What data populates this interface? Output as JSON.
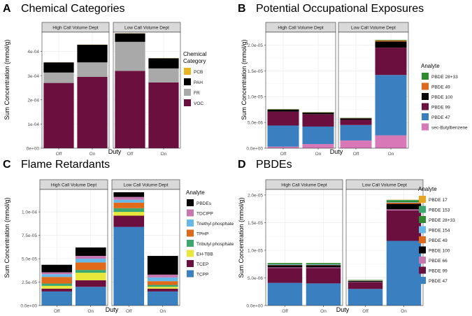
{
  "colors": {
    "PCB": "#e8b521",
    "PAH": "#000000",
    "FR": "#a9a9a9",
    "VOC": "#6b0f3f",
    "PBDE 28+33": "#2e8b2e",
    "PBDE 49": "#e06a1a",
    "PBDE 100": "#000000",
    "PBDE 99": "#6b0f3f",
    "PBDE 47": "#3a7fc0",
    "sec-Butylbenzene": "#d878b6",
    "PBDEs": "#000000",
    "TDCIPP": "#c776b0",
    "Triethyl phosphate": "#66b8e8",
    "TPHP": "#e06a1a",
    "Tributyl phosphate": "#3aa86f",
    "EH-TBB": "#e8e83a",
    "TCEP": "#6b0f3f",
    "TCPP": "#3a7fc0",
    "PBDE 17": "#e8a521",
    "PBDE 153": "#3aa86f",
    "PBDE 154": "#66b8e8",
    "PBDE 66": "#c776b0"
  },
  "chart_data": [
    {
      "id": "A",
      "panel_letter": "A",
      "title": "Chemical Categories",
      "type": "bar",
      "stacked": true,
      "xlabel": "Duty",
      "ylabel": "Sum Concentration (mmol/g)",
      "facets": [
        "High Call Volume Dept",
        "Low Call Volume Dept"
      ],
      "categories": [
        "Off",
        "On"
      ],
      "ylim": [
        0,
        0.00048
      ],
      "yticks": [
        0,
        0.0001,
        0.0002,
        0.0003,
        0.0004
      ],
      "ytick_labels": [
        "0e+00",
        "1e-04",
        "2e-04",
        "3e-04",
        "4e-04"
      ],
      "legend_title": "Chemical\nCategory",
      "legend": [
        "PCB",
        "PAH",
        "FR",
        "VOC"
      ],
      "stack_order": [
        "VOC",
        "FR",
        "PAH",
        "PCB"
      ],
      "series": [
        {
          "name": "VOC",
          "values": [
            [
              0.00027,
              0.000295
            ],
            [
              0.00032,
              0.000272
            ]
          ]
        },
        {
          "name": "FR",
          "values": [
            [
              4.3e-05,
              6e-05
            ],
            [
              0.00012,
              5.8e-05
            ]
          ]
        },
        {
          "name": "PAH",
          "values": [
            [
              4.2e-05,
              7.3e-05
            ],
            [
              3.5e-05,
              4.2e-05
            ]
          ]
        },
        {
          "name": "PCB",
          "values": [
            [
              5e-07,
              5e-07
            ],
            [
              5e-07,
              5e-07
            ]
          ]
        }
      ]
    },
    {
      "id": "B",
      "panel_letter": "B",
      "title": "Potential Occupational Exposures",
      "type": "bar",
      "stacked": true,
      "xlabel": "Duty",
      "ylabel": "Sum Concentration (mmol/g)",
      "facets": [
        "High Call Volume Dept",
        "Low Call Volume Dept"
      ],
      "categories": [
        "Off",
        "On"
      ],
      "ylim": [
        0,
        2.25e-05
      ],
      "yticks": [
        0,
        5e-06,
        1e-05,
        1.5e-05,
        2e-05
      ],
      "ytick_labels": [
        "0.0e+00",
        "5.0e-06",
        "1.0e-05",
        "1.5e-05",
        "2.0e-05"
      ],
      "legend_title": "Analyte",
      "legend": [
        "PBDE 28+33",
        "PBDE 49",
        "PBDE 100",
        "PBDE 99",
        "PBDE 47",
        "sec-Butylbenzene"
      ],
      "stack_order": [
        "sec-Butylbenzene",
        "PBDE 47",
        "PBDE 99",
        "PBDE 100",
        "PBDE 49",
        "PBDE 28+33"
      ],
      "series": [
        {
          "name": "sec-Butylbenzene",
          "values": [
            [
              3e-07,
              8e-07
            ],
            [
              1.5e-06,
              2.5e-06
            ]
          ]
        },
        {
          "name": "PBDE 47",
          "values": [
            [
              4.1e-06,
              3.4e-06
            ],
            [
              3e-06,
              1.17e-05
            ]
          ]
        },
        {
          "name": "PBDE 99",
          "values": [
            [
              2.7e-06,
              2.4e-06
            ],
            [
              1e-06,
              5.3e-06
            ]
          ]
        },
        {
          "name": "PBDE 100",
          "values": [
            [
              4e-07,
              3e-07
            ],
            [
              3e-07,
              1.2e-06
            ]
          ]
        },
        {
          "name": "PBDE 49",
          "values": [
            [
              5e-08,
              5e-08
            ],
            [
              5e-08,
              2e-07
            ]
          ]
        },
        {
          "name": "PBDE 28+33",
          "values": [
            [
              5e-08,
              5e-08
            ],
            [
              5e-08,
              1e-07
            ]
          ]
        }
      ]
    },
    {
      "id": "C",
      "panel_letter": "C",
      "title": "Flame Retardants",
      "type": "bar",
      "stacked": true,
      "xlabel": "Duty",
      "ylabel": "Sum Concentration (mmol/g)",
      "facets": [
        "High Call Volume Dept",
        "Low Call Volume Dept"
      ],
      "categories": [
        "Off",
        "On"
      ],
      "ylim": [
        0,
        0.000124
      ],
      "yticks": [
        0,
        2.5e-05,
        5e-05,
        7.5e-05,
        0.0001
      ],
      "ytick_labels": [
        "0.0e+00",
        "2.5e-05",
        "5.0e-05",
        "7.5e-05",
        "1.0e-04"
      ],
      "legend_title": "Analyte",
      "legend": [
        "PBDEs",
        "TDCIPP",
        "Triethyl phosphate",
        "TPHP",
        "Tributyl phosphate",
        "EH-TBB",
        "TCEP",
        "TCPP"
      ],
      "stack_order": [
        "TCPP",
        "TCEP",
        "EH-TBB",
        "Tributyl phosphate",
        "TPHP",
        "Triethyl phosphate",
        "TDCIPP",
        "PBDEs"
      ],
      "series": [
        {
          "name": "TCPP",
          "values": [
            [
              1.5e-05,
              2e-05
            ],
            [
              8.4e-05,
              1.5e-05
            ]
          ]
        },
        {
          "name": "TCEP",
          "values": [
            [
              3e-06,
              7e-06
            ],
            [
              1.2e-05,
              3e-06
            ]
          ]
        },
        {
          "name": "EH-TBB",
          "values": [
            [
              3e-06,
              8e-06
            ],
            [
              4e-06,
              2e-06
            ]
          ]
        },
        {
          "name": "Tributyl phosphate",
          "values": [
            [
              2.5e-06,
              3e-06
            ],
            [
              4e-06,
              2e-06
            ]
          ]
        },
        {
          "name": "TPHP",
          "values": [
            [
              7e-06,
              8e-06
            ],
            [
              6e-06,
              4e-06
            ]
          ]
        },
        {
          "name": "Triethyl phosphate",
          "values": [
            [
              3e-06,
              4e-06
            ],
            [
              3e-06,
              4e-06
            ]
          ]
        },
        {
          "name": "TDCIPP",
          "values": [
            [
              2e-06,
              3e-06
            ],
            [
              3e-06,
              3e-06
            ]
          ]
        },
        {
          "name": "PBDEs",
          "values": [
            [
              8e-06,
              9e-06
            ],
            [
              5e-06,
              2e-05
            ]
          ]
        }
      ]
    },
    {
      "id": "D",
      "panel_letter": "D",
      "title": "PBDEs",
      "type": "bar",
      "stacked": true,
      "xlabel": "Duty",
      "ylabel": "Sum Concentration (mmol/g)",
      "facets": [
        "High Call Volume Dept",
        "Low Call Volume Dept"
      ],
      "categories": [
        "Off",
        "On"
      ],
      "ylim": [
        0,
        2.1e-05
      ],
      "yticks": [
        0,
        5e-06,
        1e-05,
        1.5e-05,
        2e-05
      ],
      "ytick_labels": [
        "0.0e+00",
        "5.0e-06",
        "1.0e-05",
        "1.5e-05",
        "2.0e-05"
      ],
      "legend_title": "Analyte",
      "legend": [
        "PBDE 17",
        "PBDE 153",
        "PBDE 28+33",
        "PBDE 154",
        "PBDE 49",
        "PBDE 100",
        "PBDE 66",
        "PBDE 99",
        "PBDE 47"
      ],
      "stack_order": [
        "PBDE 47",
        "PBDE 99",
        "PBDE 66",
        "PBDE 100",
        "PBDE 49",
        "PBDE 154",
        "PBDE 28+33",
        "PBDE 153",
        "PBDE 17"
      ],
      "series": [
        {
          "name": "PBDE 47",
          "values": [
            [
              4.1e-06,
              4e-06
            ],
            [
              3e-06,
              1.17e-05
            ]
          ]
        },
        {
          "name": "PBDE 99",
          "values": [
            [
              2.7e-06,
              2.8e-06
            ],
            [
              1.2e-06,
              5.5e-06
            ]
          ]
        },
        {
          "name": "PBDE 66",
          "values": [
            [
              1e-07,
              1e-07
            ],
            [
              5e-08,
              2e-07
            ]
          ]
        },
        {
          "name": "PBDE 100",
          "values": [
            [
              4e-07,
              4e-07
            ],
            [
              2e-07,
              1e-06
            ]
          ]
        },
        {
          "name": "PBDE 49",
          "values": [
            [
              5e-08,
              5e-08
            ],
            [
              5e-08,
              2e-07
            ]
          ]
        },
        {
          "name": "PBDE 154",
          "values": [
            [
              1e-07,
              1e-07
            ],
            [
              5e-08,
              1e-07
            ]
          ]
        },
        {
          "name": "PBDE 28+33",
          "values": [
            [
              2e-07,
              2e-07
            ],
            [
              5e-08,
              3e-07
            ]
          ]
        },
        {
          "name": "PBDE 153",
          "values": [
            [
              5e-08,
              5e-08
            ],
            [
              5e-08,
              1e-07
            ]
          ]
        },
        {
          "name": "PBDE 17",
          "values": [
            [
              2e-08,
              2e-08
            ],
            [
              2e-08,
              5e-08
            ]
          ]
        }
      ]
    }
  ]
}
